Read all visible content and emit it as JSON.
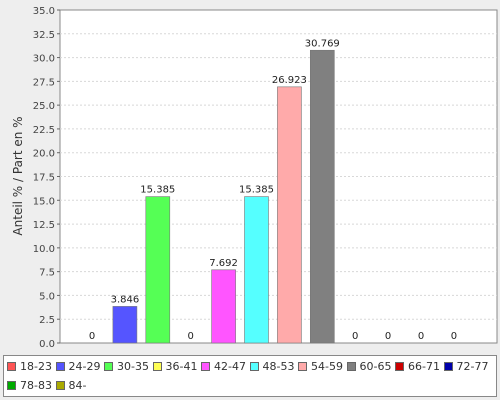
{
  "chart_data": {
    "type": "bar",
    "ylabel": "Anteil % / Part en %",
    "ylim": [
      0,
      35
    ],
    "yticks": [
      "0.0",
      "2.5",
      "5.0",
      "7.5",
      "10.0",
      "12.5",
      "15.0",
      "17.5",
      "20.0",
      "22.5",
      "25.0",
      "27.5",
      "30.0",
      "32.5",
      "35.0"
    ],
    "grid": true,
    "legend_position": "bottom",
    "series": [
      {
        "name": "18-23",
        "value": 0,
        "label": "0",
        "color": "#ff5555"
      },
      {
        "name": "24-29",
        "value": 3.846,
        "label": "3.846",
        "color": "#5555ff"
      },
      {
        "name": "30-35",
        "value": 15.385,
        "label": "15.385",
        "color": "#55ff55"
      },
      {
        "name": "36-41",
        "value": 0,
        "label": "0",
        "color": "#ffff55"
      },
      {
        "name": "42-47",
        "value": 7.692,
        "label": "7.692",
        "color": "#ff55ff"
      },
      {
        "name": "48-53",
        "value": 15.385,
        "label": "15.385",
        "color": "#55ffff"
      },
      {
        "name": "54-59",
        "value": 26.923,
        "label": "26.923",
        "color": "#ffaaaa"
      },
      {
        "name": "60-65",
        "value": 30.769,
        "label": "30.769",
        "color": "#808080"
      },
      {
        "name": "66-71",
        "value": 0,
        "label": "0",
        "color": "#cc0000"
      },
      {
        "name": "72-77",
        "value": 0,
        "label": "0",
        "color": "#0000aa"
      },
      {
        "name": "78-83",
        "value": 0,
        "label": "0",
        "color": "#00aa00"
      },
      {
        "name": "84-",
        "value": 0,
        "label": "0",
        "color": "#aaaa00"
      }
    ]
  }
}
